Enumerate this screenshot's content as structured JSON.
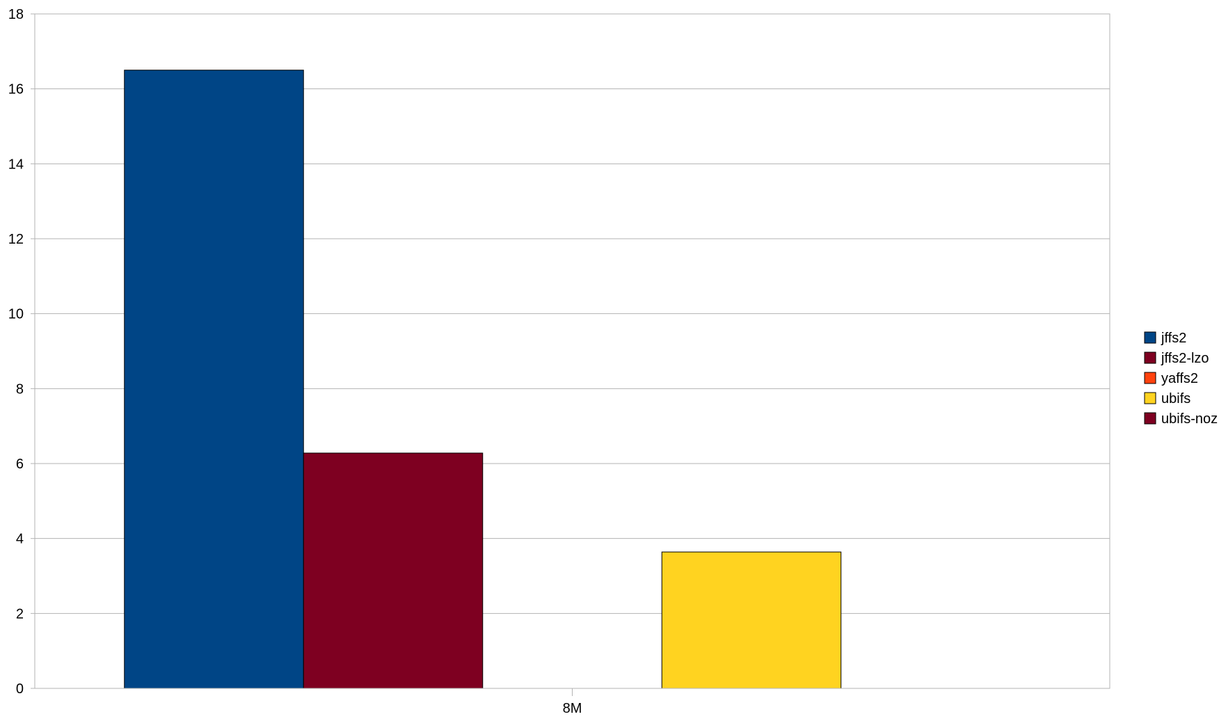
{
  "chart_data": {
    "type": "bar",
    "title": "",
    "xlabel": "",
    "ylabel": "",
    "categories": [
      "8M"
    ],
    "ylim": [
      0,
      18
    ],
    "yticks": [
      0,
      2,
      4,
      6,
      8,
      10,
      12,
      14,
      16,
      18
    ],
    "grid": true,
    "legend_position": "right",
    "series": [
      {
        "name": "jffs2",
        "values": [
          16.5
        ],
        "color": "#004586"
      },
      {
        "name": "jffs2-lzo",
        "values": [
          6.28
        ],
        "color": "#7e0021"
      },
      {
        "name": "yaffs2",
        "values": [
          0
        ],
        "color": "#ff420e"
      },
      {
        "name": "ubifs",
        "values": [
          3.64
        ],
        "color": "#ffd320"
      },
      {
        "name": "ubifs-noz",
        "values": [
          0
        ],
        "color": "#7e0021"
      }
    ]
  }
}
